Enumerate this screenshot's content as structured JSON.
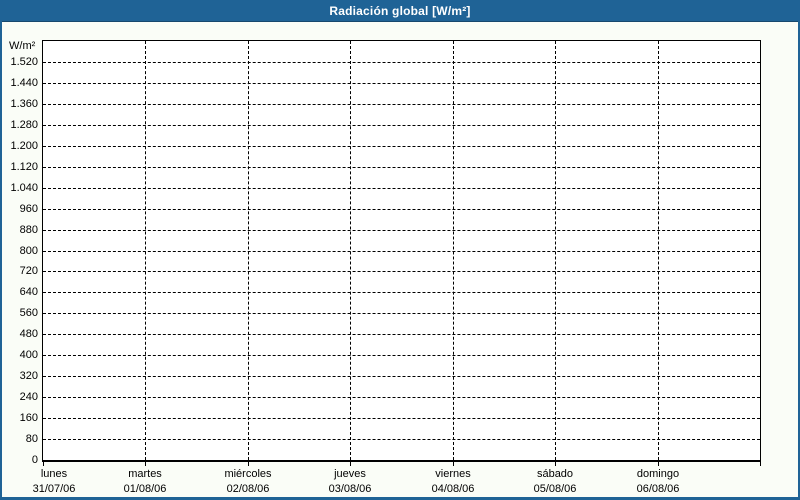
{
  "title_bar": {
    "title": "Radiación global [W/m²]"
  },
  "colors": {
    "accent_blue": "#1f6396",
    "titlebar_edge": "#17496e",
    "page_bg": "#fafdf7",
    "plot_bg": "#ffffff",
    "grid_color": "#000000",
    "text_color": "#000000",
    "title_text": "#ffffff"
  },
  "chart_data": {
    "type": "line",
    "title": "Radiación global [W/m²]",
    "ylabel": "W/m²",
    "xlabel": "",
    "ylim": [
      0,
      1600
    ],
    "ytick_step": 80,
    "grid": true,
    "legend": null,
    "series": [],
    "origin_label": "0",
    "yticks": [
      {
        "value": 1520,
        "label": "1.520"
      },
      {
        "value": 1440,
        "label": "1.440"
      },
      {
        "value": 1360,
        "label": "1.360"
      },
      {
        "value": 1280,
        "label": "1.280"
      },
      {
        "value": 1200,
        "label": "1.200"
      },
      {
        "value": 1120,
        "label": "1.120"
      },
      {
        "value": 1040,
        "label": "1.040"
      },
      {
        "value": 960,
        "label": "960"
      },
      {
        "value": 880,
        "label": "880"
      },
      {
        "value": 800,
        "label": "800"
      },
      {
        "value": 720,
        "label": "720"
      },
      {
        "value": 640,
        "label": "640"
      },
      {
        "value": 560,
        "label": "560"
      },
      {
        "value": 480,
        "label": "480"
      },
      {
        "value": 400,
        "label": "400"
      },
      {
        "value": 320,
        "label": "320"
      },
      {
        "value": 240,
        "label": "240"
      },
      {
        "value": 160,
        "label": "160"
      },
      {
        "value": 80,
        "label": "80"
      }
    ],
    "x_categories": [
      {
        "name": "lunes",
        "date": "31/07/06"
      },
      {
        "name": "martes",
        "date": "01/08/06"
      },
      {
        "name": "miércoles",
        "date": "02/08/06"
      },
      {
        "name": "jueves",
        "date": "03/08/06"
      },
      {
        "name": "viernes",
        "date": "04/08/06"
      },
      {
        "name": "sábado",
        "date": "05/08/06"
      },
      {
        "name": "domingo",
        "date": "06/08/06"
      }
    ]
  }
}
